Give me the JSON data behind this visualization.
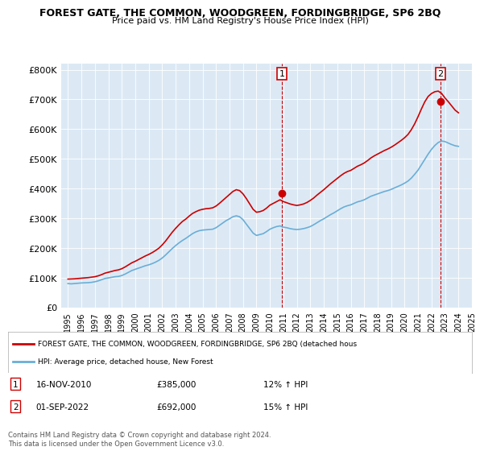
{
  "title": "FOREST GATE, THE COMMON, WOODGREEN, FORDINGBRIDGE, SP6 2BQ",
  "subtitle": "Price paid vs. HM Land Registry's House Price Index (HPI)",
  "ylabel_ticks": [
    "£0",
    "£100K",
    "£200K",
    "£300K",
    "£400K",
    "£500K",
    "£600K",
    "£700K",
    "£800K"
  ],
  "ytick_values": [
    0,
    100000,
    200000,
    300000,
    400000,
    500000,
    600000,
    700000,
    800000
  ],
  "ylim": [
    0,
    820000
  ],
  "background_color": "#dce9f5",
  "plot_bg_color": "#dce9f5",
  "line_color_hpi": "#6aaed6",
  "line_color_price": "#cc0000",
  "marker1_date": 2010.88,
  "marker1_price": 385000,
  "marker2_date": 2022.67,
  "marker2_price": 692000,
  "legend_line1": "FOREST GATE, THE COMMON, WOODGREEN, FORDINGBRIDGE, SP6 2BQ (detached hous",
  "legend_line2": "HPI: Average price, detached house, New Forest",
  "annotation1_label": "1",
  "annotation2_label": "2",
  "note1_date": "16-NOV-2010",
  "note1_price": "£385,000",
  "note1_hpi": "12% ↑ HPI",
  "note2_date": "01-SEP-2022",
  "note2_price": "£692,000",
  "note2_hpi": "15% ↑ HPI",
  "footer": "Contains HM Land Registry data © Crown copyright and database right 2024.\nThis data is licensed under the Open Government Licence v3.0.",
  "hpi_data": {
    "years": [
      1995.0,
      1995.25,
      1995.5,
      1995.75,
      1996.0,
      1996.25,
      1996.5,
      1996.75,
      1997.0,
      1997.25,
      1997.5,
      1997.75,
      1998.0,
      1998.25,
      1998.5,
      1998.75,
      1999.0,
      1999.25,
      1999.5,
      1999.75,
      2000.0,
      2000.25,
      2000.5,
      2000.75,
      2001.0,
      2001.25,
      2001.5,
      2001.75,
      2002.0,
      2002.25,
      2002.5,
      2002.75,
      2003.0,
      2003.25,
      2003.5,
      2003.75,
      2004.0,
      2004.25,
      2004.5,
      2004.75,
      2005.0,
      2005.25,
      2005.5,
      2005.75,
      2006.0,
      2006.25,
      2006.5,
      2006.75,
      2007.0,
      2007.25,
      2007.5,
      2007.75,
      2008.0,
      2008.25,
      2008.5,
      2008.75,
      2009.0,
      2009.25,
      2009.5,
      2009.75,
      2010.0,
      2010.25,
      2010.5,
      2010.75,
      2011.0,
      2011.25,
      2011.5,
      2011.75,
      2012.0,
      2012.25,
      2012.5,
      2012.75,
      2013.0,
      2013.25,
      2013.5,
      2013.75,
      2014.0,
      2014.25,
      2014.5,
      2014.75,
      2015.0,
      2015.25,
      2015.5,
      2015.75,
      2016.0,
      2016.25,
      2016.5,
      2016.75,
      2017.0,
      2017.25,
      2017.5,
      2017.75,
      2018.0,
      2018.25,
      2018.5,
      2018.75,
      2019.0,
      2019.25,
      2019.5,
      2019.75,
      2020.0,
      2020.25,
      2020.5,
      2020.75,
      2021.0,
      2021.25,
      2021.5,
      2021.75,
      2022.0,
      2022.25,
      2022.5,
      2022.75,
      2023.0,
      2023.25,
      2023.5,
      2023.75,
      2024.0
    ],
    "values": [
      80000,
      79000,
      80000,
      81000,
      82000,
      82500,
      83000,
      84000,
      86000,
      89000,
      93000,
      97000,
      99000,
      101000,
      103000,
      104000,
      107000,
      112000,
      118000,
      124000,
      128000,
      132000,
      136000,
      140000,
      143000,
      147000,
      152000,
      158000,
      166000,
      176000,
      187000,
      198000,
      208000,
      217000,
      225000,
      232000,
      240000,
      248000,
      254000,
      258000,
      260000,
      261000,
      262000,
      263000,
      268000,
      276000,
      284000,
      292000,
      298000,
      305000,
      308000,
      305000,
      295000,
      280000,
      265000,
      250000,
      242000,
      245000,
      248000,
      255000,
      263000,
      268000,
      272000,
      274000,
      270000,
      268000,
      265000,
      263000,
      262000,
      263000,
      265000,
      268000,
      272000,
      278000,
      285000,
      292000,
      298000,
      305000,
      312000,
      318000,
      325000,
      332000,
      338000,
      342000,
      345000,
      350000,
      355000,
      358000,
      362000,
      368000,
      374000,
      378000,
      382000,
      386000,
      390000,
      393000,
      397000,
      402000,
      407000,
      412000,
      418000,
      425000,
      435000,
      448000,
      462000,
      480000,
      498000,
      516000,
      532000,
      545000,
      555000,
      560000,
      558000,
      553000,
      548000,
      544000,
      542000
    ]
  },
  "price_data": {
    "years": [
      1995.0,
      1995.25,
      1995.5,
      1995.75,
      1996.0,
      1996.25,
      1996.5,
      1996.75,
      1997.0,
      1997.25,
      1997.5,
      1997.75,
      1998.0,
      1998.25,
      1998.5,
      1998.75,
      1999.0,
      1999.25,
      1999.5,
      1999.75,
      2000.0,
      2000.25,
      2000.5,
      2000.75,
      2001.0,
      2001.25,
      2001.5,
      2001.75,
      2002.0,
      2002.25,
      2002.5,
      2002.75,
      2003.0,
      2003.25,
      2003.5,
      2003.75,
      2004.0,
      2004.25,
      2004.5,
      2004.75,
      2005.0,
      2005.25,
      2005.5,
      2005.75,
      2006.0,
      2006.25,
      2006.5,
      2006.75,
      2007.0,
      2007.25,
      2007.5,
      2007.75,
      2008.0,
      2008.25,
      2008.5,
      2008.75,
      2009.0,
      2009.25,
      2009.5,
      2009.75,
      2010.0,
      2010.25,
      2010.5,
      2010.75,
      2011.0,
      2011.25,
      2011.5,
      2011.75,
      2012.0,
      2012.25,
      2012.5,
      2012.75,
      2013.0,
      2013.25,
      2013.5,
      2013.75,
      2014.0,
      2014.25,
      2014.5,
      2014.75,
      2015.0,
      2015.25,
      2015.5,
      2015.75,
      2016.0,
      2016.25,
      2016.5,
      2016.75,
      2017.0,
      2017.25,
      2017.5,
      2017.75,
      2018.0,
      2018.25,
      2018.5,
      2018.75,
      2019.0,
      2019.25,
      2019.5,
      2019.75,
      2020.0,
      2020.25,
      2020.5,
      2020.75,
      2021.0,
      2021.25,
      2021.5,
      2021.75,
      2022.0,
      2022.25,
      2022.5,
      2022.75,
      2023.0,
      2023.25,
      2023.5,
      2023.75,
      2024.0
    ],
    "values": [
      95000,
      95500,
      96000,
      97000,
      98000,
      99000,
      100000,
      101500,
      103000,
      106000,
      110000,
      115000,
      118000,
      121000,
      124000,
      126000,
      130000,
      136000,
      143000,
      150000,
      155000,
      161000,
      167000,
      173000,
      178000,
      184000,
      191000,
      199000,
      210000,
      223000,
      238000,
      253000,
      266000,
      278000,
      289000,
      297000,
      307000,
      316000,
      322000,
      327000,
      330000,
      332000,
      333000,
      335000,
      341000,
      350000,
      360000,
      370000,
      380000,
      390000,
      396000,
      393000,
      382000,
      366000,
      348000,
      330000,
      320000,
      322000,
      326000,
      334000,
      344000,
      350000,
      356000,
      362000,
      356000,
      352000,
      348000,
      345000,
      343000,
      345000,
      348000,
      353000,
      360000,
      368000,
      378000,
      387000,
      396000,
      406000,
      416000,
      425000,
      434000,
      443000,
      451000,
      457000,
      461000,
      468000,
      475000,
      480000,
      486000,
      494000,
      503000,
      510000,
      516000,
      522000,
      528000,
      533000,
      539000,
      546000,
      554000,
      562000,
      571000,
      582000,
      598000,
      618000,
      642000,
      668000,
      692000,
      710000,
      720000,
      726000,
      728000,
      720000,
      705000,
      692000,
      678000,
      664000,
      655000
    ]
  }
}
